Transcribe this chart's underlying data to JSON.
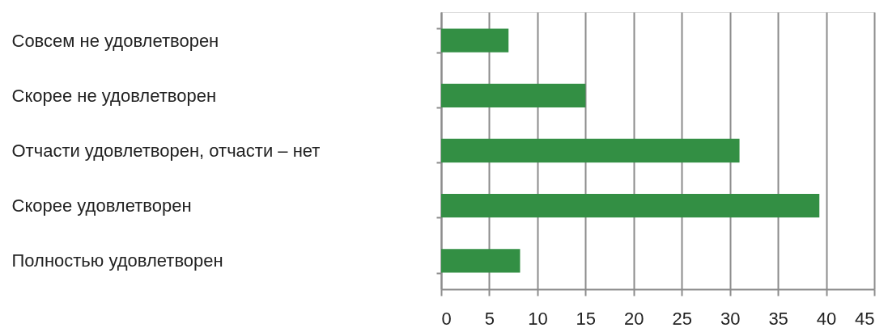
{
  "chart_data": {
    "type": "bar",
    "orientation": "horizontal",
    "categories": [
      "Совсем не удовлетворен",
      "Скорее не удовлетворен",
      "Отчасти удовлетворен, отчасти – нет",
      "Скорее удовлетворен",
      "Полностью удовлетворен"
    ],
    "values": [
      7,
      15,
      31,
      39.3,
      8.2
    ],
    "color": "#338f44",
    "xlim": [
      0,
      45
    ],
    "xticks": [
      0,
      5,
      10,
      15,
      20,
      25,
      30,
      35,
      40,
      45
    ],
    "grid": "x"
  }
}
